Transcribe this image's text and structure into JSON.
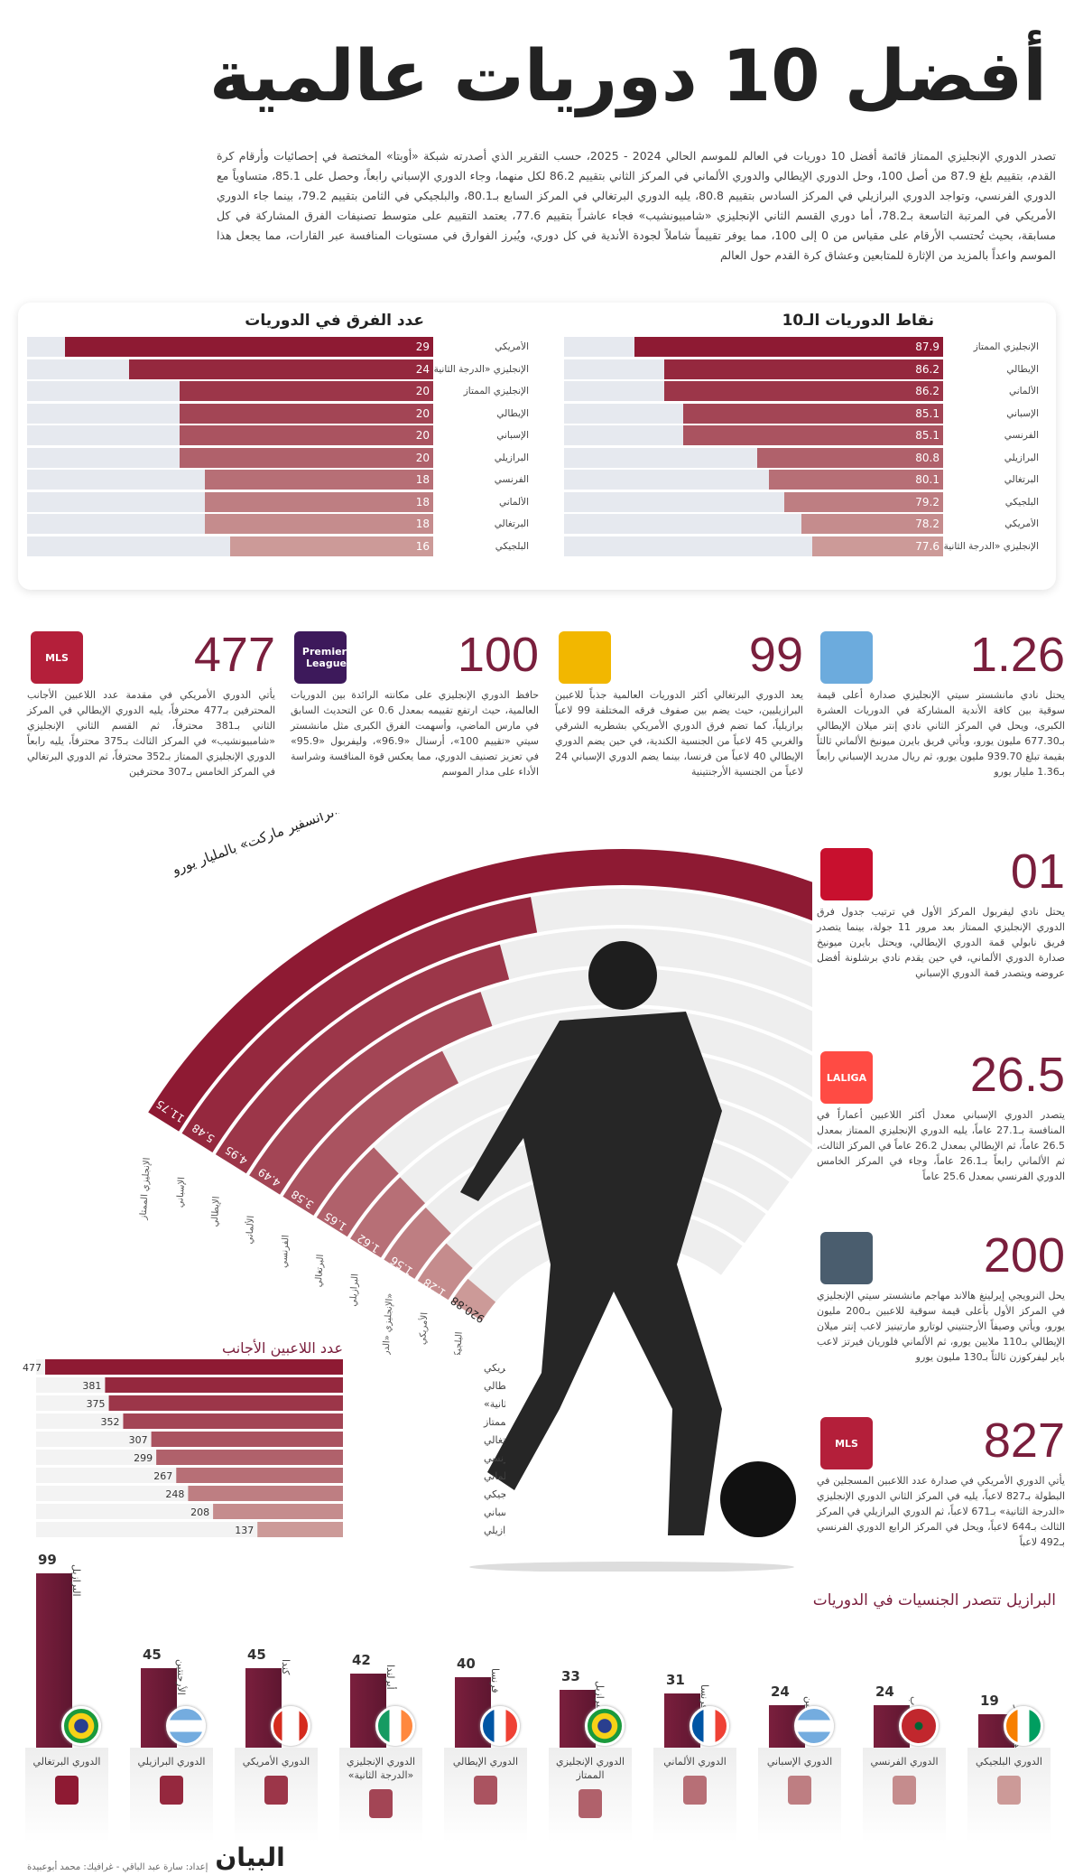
{
  "title": "أفضل 10 دوريات عالمية",
  "intro": "تصدر الدوري الإنجليزي الممتاز قائمة أفضل 10 دوريات في العالم للموسم الحالي 2024 - 2025، حسب التقرير الذي أصدرته شبكة «أوبتا» المختصة في إحصائيات وأرقام كرة القدم، بتقييم بلغ 87.9 من أصل 100، وحل الدوري الإيطالي والدوري الألماني في المركز الثاني بتقييم 86.2 لكل منهما، وجاء الدوري الإسباني رابعاً، وحصل على 85.1، متساوياً مع الدوري الفرنسي، وتواجد الدوري البرازيلي في المركز السادس بتقييم 80.8، يليه الدوري البرتغالي في المركز السابع بـ80.1، والبلجيكي في الثامن بتقييم 79.2، بينما جاء الدوري الأمريكي في المرتبة التاسعة بـ78.2، أما دوري القسم الثاني الإنجليزي «شامبيونشيب» فجاء عاشراً بتقييم 77.6، يعتمد التقييم على متوسط تصنيفات الفرق المشاركة في كل مسابقة، بحيث تُحتسب الأرقام على مقياس من 0 إلى 100، مما يوفر تقييماً شاملاً لجودة الأندية في كل دوري، ويُبرز الفوارق في مستويات المنافسة عبر القارات، مما يجعل هذا الموسم واعداً بالمزيد من الإثارة للمتابعين وعشاق كرة القدم حول العالم",
  "colors": {
    "accent": "#7a1f3d",
    "bar_top": "#8e1a33",
    "bar_bottom": "#cc9a98",
    "track": "#e6e9ef"
  },
  "chart_data": [
    {
      "type": "bar",
      "orientation": "horizontal",
      "title": "نقاط الدوريات الـ10",
      "categories": [
        "الإنجليزي الممتاز",
        "الإيطالي",
        "الألماني",
        "الإسباني",
        "الفرنسي",
        "البرازيلي",
        "البرتغالي",
        "البلجيكي",
        "الأمريكي",
        "الإنجليزي «الدرجة الثانية»"
      ],
      "values": [
        87.9,
        86.2,
        86.2,
        85.1,
        85.1,
        80.8,
        80.1,
        79.2,
        78.2,
        77.6
      ],
      "labels": [
        "87.9",
        "86.2",
        "86.2",
        "85.1",
        "85.1",
        "80.8",
        "80.1",
        "79.2",
        "78.2",
        "77.6"
      ],
      "xlim": [
        0,
        100
      ]
    },
    {
      "type": "bar",
      "orientation": "horizontal",
      "title": "عدد الفرق في الدوريات",
      "categories": [
        "الأمريكي",
        "الإنجليزي «الدرجة الثانية»",
        "الإنجليزي الممتاز",
        "الإيطالي",
        "الإسباني",
        "البرازيلي",
        "الفرنسي",
        "الألماني",
        "البرتغالي",
        "البلجيكي"
      ],
      "values": [
        29,
        24,
        20,
        20,
        20,
        20,
        18,
        18,
        18,
        16
      ],
      "labels": [
        "29",
        "24",
        "20",
        "20",
        "20",
        "20",
        "18",
        "18",
        "18",
        "16"
      ],
      "xlim": [
        0,
        33
      ]
    },
    {
      "type": "bar",
      "orientation": "radial",
      "title": "القيمة السوقية بحسب «ترانسفير ماركت» بالمليار يورو",
      "categories": [
        "الإنجليزي الممتاز",
        "الإسباني",
        "الإيطالي",
        "الألماني",
        "الفرنسي",
        "البرتغالي",
        "البرازيلي",
        "الإنجليزي «الدرجة الثانية»",
        "الأمريكي",
        "البلجيكي"
      ],
      "values": [
        11.75,
        5.48,
        4.95,
        4.49,
        3.58,
        1.65,
        1.62,
        1.56,
        1.28,
        0.92088
      ],
      "labels": [
        "11.75",
        "5.48",
        "4.95",
        "4.49",
        "3.58",
        "1.65",
        "1.62",
        "1.56",
        "1.28",
        "920.88"
      ]
    },
    {
      "type": "bar",
      "orientation": "horizontal",
      "title": "عدد اللاعبين الأجانب",
      "categories": [
        "الدوري الأمريكي",
        "الدوري الإيطالي",
        "الدوري الإنجليزي «الدرجة الثانية»",
        "الدوري الإنجليزي الممتاز",
        "الدوري البرتغالي",
        "الدوري الفرنسي",
        "الدوري الألماني",
        "الدوري البلجيكي",
        "الدوري الإسباني",
        "الدوري البرازيلي"
      ],
      "values": [
        477,
        381,
        375,
        352,
        307,
        299,
        267,
        248,
        208,
        137
      ],
      "labels": [
        "477",
        "381",
        "375",
        "352",
        "307",
        "299",
        "267",
        "248",
        "208",
        "137"
      ]
    },
    {
      "type": "bar",
      "title": "البرازيل تتصدر الجنسيات في الدوريات",
      "categories": [
        "الدوري البرتغالي",
        "الدوري البرازيلي",
        "الدوري الأمريكي",
        "الدوري الإنجليزي «الدرجة الثانية»",
        "الدوري الإيطالي",
        "الدوري الإنجليزي الممتاز",
        "الدوري الألماني",
        "الدوري الإسباني",
        "الدوري الفرنسي",
        "الدوري البلجيكي"
      ],
      "countries": [
        "البرازيل",
        "الأرجنتين",
        "كندا",
        "أيرلندا",
        "فرنسا",
        "البرازيل",
        "فرنسا",
        "الأرجنتين",
        "المغرب",
        "كوت ديفوار"
      ],
      "flags": [
        "brazil",
        "argentina",
        "canada",
        "ireland",
        "france",
        "brazil",
        "france",
        "argentina",
        "morocco",
        "ivory-coast"
      ],
      "values": [
        99,
        45,
        45,
        42,
        40,
        33,
        31,
        24,
        24,
        19
      ],
      "labels": [
        "99",
        "45",
        "45",
        "42",
        "40",
        "33",
        "31",
        "24",
        "24",
        "19"
      ]
    }
  ],
  "stats": [
    {
      "number": "1.26",
      "icon": "man-city-badge",
      "text": "يحتل نادي مانشستر سيتي الإنجليزي صدارة أعلى قيمة سوقية بين كافة الأندية المشاركة في الدوريات العشرة الكبرى، ويحل في المركز الثاني نادي إنتر ميلان الإيطالي بـ677.30 مليون يورو، ويأتي فريق بايرن ميونيخ الألماني ثالثاً بقيمة تبلغ 939.70 مليون يورو، ثم ريال مدريد الإسباني رابعاً بـ1.36 مليار يورو"
    },
    {
      "number": "99",
      "icon": "liga-portugal-logo",
      "text": "يعد الدوري البرتغالي أكثر الدوريات العالمية جذباً للاعبين البرازيليين، حيث يضم بين صفوف فرقه المختلفة 99 لاعباً برازيلياً، كما تضم فرق الدوري الأمريكي بشطريه الشرقي والغربي 45 لاعباً من الجنسية الكندية، في حين يضم الدوري الإيطالي 40 لاعباً من فرنسا، بينما يضم الدوري الإسباني 24 لاعباً من الجنسية الأرجنتينية"
    },
    {
      "number": "100",
      "icon": "premier-league-logo",
      "logo_text": "Premier League",
      "text": "حافظ الدوري الإنجليزي على مكانته الرائدة بين الدوريات العالمية، حيث ارتفع تقييمه بمعدل 0.6 عن التحديث السابق في مارس الماضي، وأسهمت الفرق الكبرى مثل مانشستر سيتي «تقييم 100»، أرسنال «96.9»، وليفربول «95.9» في تعزيز تصنيف الدوري، مما يعكس قوة المنافسة وشراسة الأداء على مدار الموسم"
    },
    {
      "number": "477",
      "icon": "mls-logo",
      "logo_text": "MLS",
      "text": "يأتي الدوري الأمريكي في مقدمة عدد اللاعبين الأجانب المحترفين بـ477 محترفاً، يليه الدوري الإيطالي في المركز الثاني بـ381 محترفاً، ثم القسم الثاني الإنجليزي «شامبيونشيب» في المركز الثالث بـ375 محترفاً، يليه رابعاً الدوري الإنجليزي الممتاز بـ352 محترفاً، ثم الدوري البرتغالي في المركز الخامس بـ307 محترفين"
    },
    {
      "number": "01",
      "icon": "liverpool-badge",
      "text": "يحتل نادي ليفربول المركز الأول في ترتيب جدول فرق الدوري الإنجليزي الممتاز بعد مرور 11 جولة، بينما يتصدر فريق نابولي قمة الدوري الإيطالي، ويحتل بايرن ميونيخ صدارة الدوري الألماني، في حين يقدم نادي برشلونة أفضل عروضه ويتصدر قمة الدوري الإسباني"
    },
    {
      "number": "26.5",
      "icon": "laliga-logo",
      "logo_text": "LALIGA",
      "text": "يتصدر الدوري الإسباني معدل أكثر اللاعبين أعماراً في المنافسة بـ27.1 عاماً، يليه الدوري الإنجليزي الممتاز بمعدل 26.5 عاماً، ثم الإيطالي بمعدل 26.2 عاماً في المركز الثالث، ثم الألماني رابعاً بـ26.1 عاماً، وجاء في المركز الخامس الدوري الفرنسي بمعدل 25.6 عاماً"
    },
    {
      "number": "200",
      "icon": "player-photo",
      "text": "يحل النرويجي إيرلينغ هالاند مهاجم مانشستر سيتي الإنجليزي في المركز الأول بأعلى قيمة سوقية للاعبين بـ200 مليون يورو، ويأتي وصيفاً الأرجنتيني لوتارو مارتينيز لاعب إنتر ميلان الإيطالي بـ110 ملايين يورو، ثم الألماني فلوريان فيرتز لاعب باير ليفركوزن ثالثاً بـ130 مليون يورو"
    },
    {
      "number": "827",
      "icon": "mls-logo",
      "logo_text": "MLS",
      "text": "يأتي الدوري الأمريكي في صدارة عدد اللاعبين المسجلين في البطولة بـ827 لاعباً، يليه في المركز الثاني الدوري الإنجليزي «الدرجة الثانية» بـ671 لاعباً، ثم الدوري البرازيلي في المركز الثالث بـ644 لاعباً، ويحل في المركز الرابع الدوري الفرنسي بـ492 لاعباً"
    }
  ],
  "footer": {
    "logo": "البيان",
    "credit": "إعداد: سارة عبد الباقي - غرافيك: محمد أبوعبيدة"
  }
}
